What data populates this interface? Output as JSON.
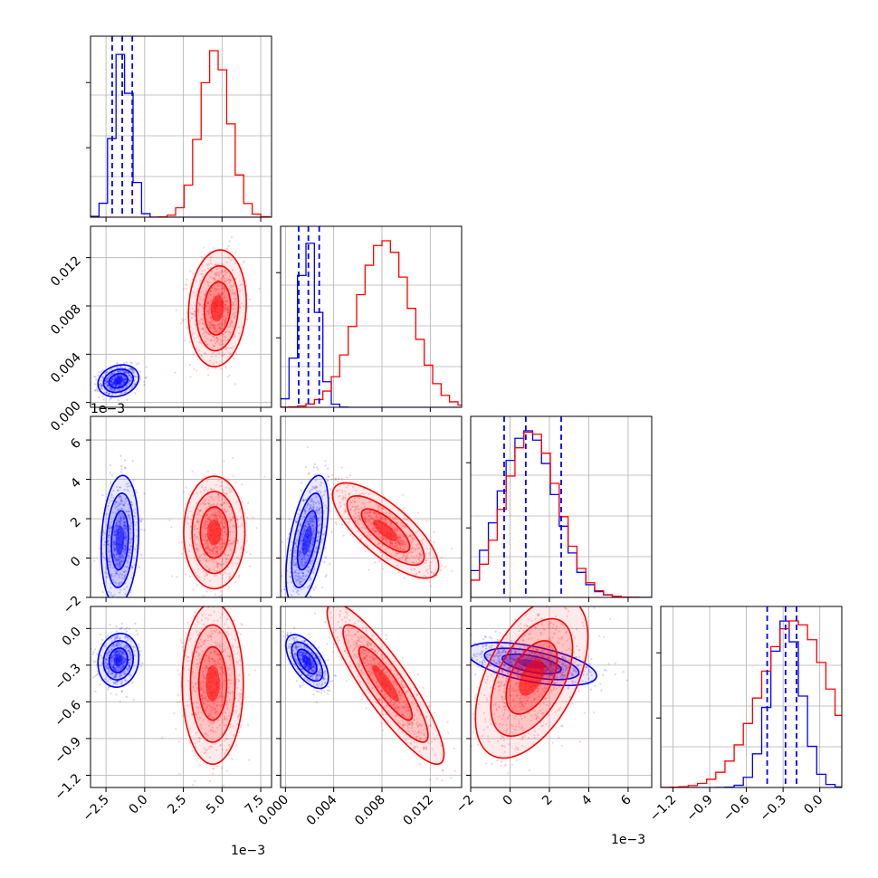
{
  "chart_data": {
    "type": "corner",
    "series": [
      {
        "name": "",
        "color": "#0000ff"
      },
      {
        "name": "",
        "color": "#ff0000"
      }
    ],
    "parameters": [
      {
        "range": [
          -0.0035,
          0.0082
        ],
        "ticks": [
          -0.0025,
          0.0,
          0.0025,
          0.005,
          0.0075
        ],
        "tick_labels": [
          "−2.5",
          "0.0",
          "2.5",
          "5.0",
          "7.5"
        ],
        "offset_label": "1e−3",
        "bin_width": 0.00055,
        "hist": {
          "blue": {
            "mean": -0.00145,
            "sd": 0.00055
          },
          "red": {
            "mean": 0.00455,
            "sd": 0.00095
          }
        },
        "quantiles_blue": [
          -0.0021,
          -0.00145,
          -0.0008
        ]
      },
      {
        "range": [
          -0.0004,
          0.0146
        ],
        "ticks": [
          0.0,
          0.004,
          0.008,
          0.012
        ],
        "tick_labels": [
          "0.000",
          "0.004",
          "0.008",
          "0.012"
        ],
        "offset_label": "",
        "bin_width": 0.0007,
        "hist": {
          "blue": {
            "mean": 0.0019,
            "sd": 0.0008
          },
          "red": {
            "mean": 0.0082,
            "sd": 0.0022
          }
        },
        "quantiles_blue": [
          0.0011,
          0.0019,
          0.0028
        ]
      },
      {
        "range": [
          -0.002,
          0.0072
        ],
        "ticks": [
          -0.002,
          0.0,
          0.002,
          0.004,
          0.006
        ],
        "tick_labels": [
          "−2",
          "0",
          "2",
          "4",
          "6"
        ],
        "offset_label": "1e−3",
        "bin_width": 0.00045,
        "hist": {
          "blue": {
            "mean": 0.0009,
            "sd": 0.0014
          },
          "red": {
            "mean": 0.0011,
            "sd": 0.00135
          }
        },
        "quantiles_blue": [
          -0.0003,
          0.0008,
          0.0026
        ]
      },
      {
        "range": [
          -1.3,
          0.18
        ],
        "ticks": [
          -1.2,
          -0.9,
          -0.6,
          -0.3,
          0.0
        ],
        "tick_labels": [
          "−1.2",
          "−0.9",
          "−0.6",
          "−0.3",
          "0.0"
        ],
        "offset_label": "",
        "bin_width": 0.075,
        "hist": {
          "blue": {
            "mean": -0.28,
            "sd": 0.13
          },
          "red": {
            "mean": -0.2,
            "sd": 0.28
          }
        },
        "quantiles_blue": [
          -0.43,
          -0.28,
          -0.19
        ]
      }
    ],
    "pairs": [
      {
        "x": 0,
        "y": 1,
        "blue": {
          "cx": -0.0017,
          "cy": 0.0018,
          "sx": 0.0006,
          "sy": 0.0006,
          "rho": 0.2
        },
        "red": {
          "cx": 0.0047,
          "cy": 0.0078,
          "sx": 0.00085,
          "sy": 0.0022,
          "rho": 0.1
        }
      },
      {
        "x": 0,
        "y": 2,
        "blue": {
          "cx": -0.0016,
          "cy": 0.0009,
          "sx": 0.00055,
          "sy": 0.0015,
          "rho": 0.15
        },
        "red": {
          "cx": 0.0045,
          "cy": 0.0013,
          "sx": 0.0009,
          "sy": 0.0013,
          "rho": 0.0
        }
      },
      {
        "x": 0,
        "y": 3,
        "blue": {
          "cx": -0.0017,
          "cy": -0.26,
          "sx": 0.0006,
          "sy": 0.1,
          "rho": 0.1
        },
        "red": {
          "cx": 0.0044,
          "cy": -0.45,
          "sx": 0.0009,
          "sy": 0.3,
          "rho": 0.0
        }
      },
      {
        "x": 1,
        "y": 2,
        "blue": {
          "cx": 0.0018,
          "cy": 0.0009,
          "sx": 0.0008,
          "sy": 0.0015,
          "rho": 0.55
        },
        "red": {
          "cx": 0.0083,
          "cy": 0.0014,
          "sx": 0.002,
          "sy": 0.0011,
          "rho": -0.75
        }
      },
      {
        "x": 1,
        "y": 3,
        "blue": {
          "cx": 0.0018,
          "cy": -0.27,
          "sx": 0.0008,
          "sy": 0.1,
          "rho": -0.6
        },
        "red": {
          "cx": 0.0083,
          "cy": -0.45,
          "sx": 0.0022,
          "sy": 0.3,
          "rho": -0.88
        }
      },
      {
        "x": 2,
        "y": 3,
        "blue": {
          "cx": 0.0011,
          "cy": -0.29,
          "sx": 0.0015,
          "sy": 0.08,
          "rho": -0.55
        },
        "red": {
          "cx": 0.0011,
          "cy": -0.4,
          "sx": 0.0013,
          "sy": 0.3,
          "rho": 0.5
        }
      }
    ],
    "grid": true
  }
}
